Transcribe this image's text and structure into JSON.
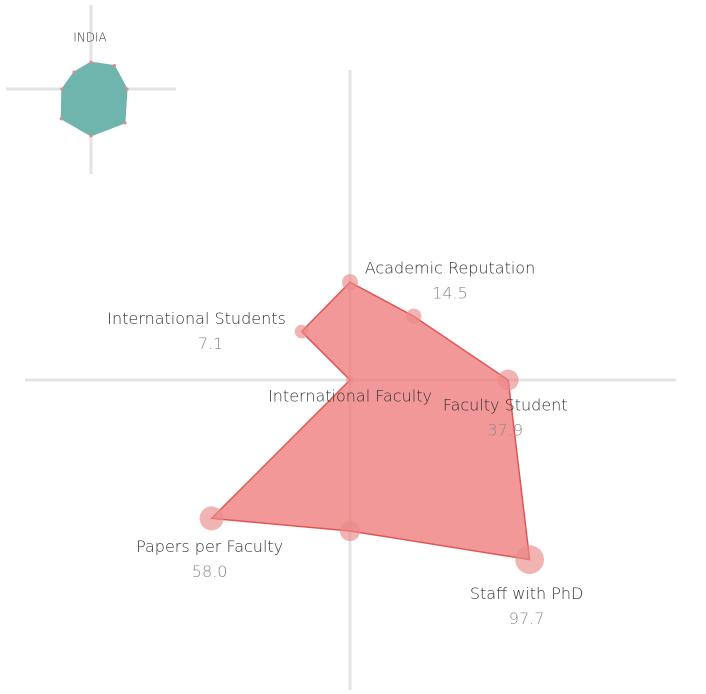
{
  "chart_data": [
    {
      "type": "radar",
      "title": "INDIA",
      "values": [
        29,
        44,
        52,
        92,
        88,
        71,
        34,
        23
      ],
      "color": "#6fb5ae",
      "rlim": [
        0,
        100
      ]
    },
    {
      "type": "radar",
      "categories": [
        "Academic Reputation",
        null,
        "Faculty Student",
        "Staff with PhD",
        null,
        "Papers per Faculty",
        "International Faculty",
        "International Students"
      ],
      "values": [
        14.5,
        12.3,
        37.9,
        97.7,
        34.5,
        58.0,
        0,
        7.1
      ],
      "value_labels": [
        "14.5",
        null,
        "37.9",
        "97.7",
        null,
        "58.0",
        null,
        "7.1"
      ],
      "color": "#ef7b7b",
      "rlim": [
        0,
        100
      ]
    }
  ]
}
